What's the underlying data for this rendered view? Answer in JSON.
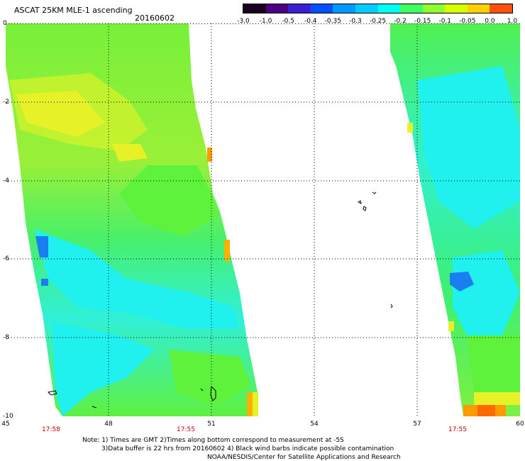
{
  "header": {
    "title": "ASCAT 25KM MLE-1 ascending",
    "date": "20160602"
  },
  "colorbar": {
    "labels": [
      "-3.0",
      "-1.0",
      "-0.5",
      "-0.4",
      "-0.35",
      "-0.3",
      "-0.25",
      "-0.2",
      "-0.15",
      "-0.1",
      "-0.05",
      "0.0",
      "1.0"
    ],
    "colors": [
      "#1a0020",
      "#4b0082",
      "#3a20d0",
      "#0050ff",
      "#0099ff",
      "#00ccff",
      "#00ffee",
      "#40ff60",
      "#90ff30",
      "#d8ff00",
      "#ffd000",
      "#ff5010"
    ]
  },
  "map": {
    "y_labels": [
      "0",
      "-2",
      "-4",
      "-6",
      "-8",
      "-10"
    ],
    "x_labels": [
      "45",
      "48",
      "51",
      "54",
      "57",
      "60"
    ],
    "time_labels": [
      "17:58",
      "17:55",
      "17:55"
    ],
    "swath_colors": {
      "green": "#5ef23c",
      "light_green": "#8cf03a",
      "yellow": "#e6f227",
      "cyan": "#20f0ee",
      "blue": "#1a7ef0",
      "orange": "#ff9a00",
      "red": "#ff3c00"
    }
  },
  "footer": {
    "line1": "Note: 1) Times are GMT 2)Times along bottom correspond to measurement at -5S",
    "line2": "3)Data buffer is 22 hrs from 20160602 4) Black wind barbs indicate possible contamination",
    "line3": "NOAA/NESDIS/Center for Satellite Applications and Research"
  }
}
